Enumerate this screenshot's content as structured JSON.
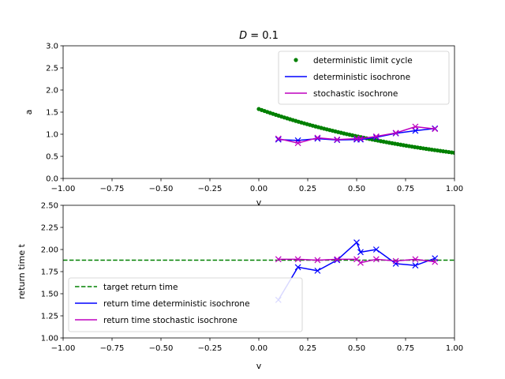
{
  "chart_data": [
    {
      "type": "scatter",
      "title": "D = 0.1",
      "title_parts": {
        "symbol": "D",
        "rest": " = 0.1"
      },
      "xlabel": "v",
      "ylabel": "a",
      "xlim": [
        -1.0,
        1.0
      ],
      "ylim": [
        0.0,
        3.0
      ],
      "x_ticks": [
        "−1.00",
        "−0.75",
        "−0.50",
        "−0.25",
        "0.00",
        "0.25",
        "0.50",
        "0.75",
        "1.00"
      ],
      "y_ticks": [
        "0.0",
        "0.5",
        "1.0",
        "1.5",
        "2.0",
        "2.5",
        "3.0"
      ],
      "grid": false,
      "legend_position": "upper-right",
      "series": [
        {
          "name": "deterministic limit cycle",
          "kind": "dots",
          "color": "#008000",
          "curve": {
            "x_start": 0.0,
            "x_end": 1.0,
            "y_start": 1.57,
            "y_end": 0.58,
            "count": 70
          }
        },
        {
          "name": "deterministic isochrone",
          "kind": "line-x",
          "color": "#0000ff",
          "x": [
            0.1,
            0.2,
            0.3,
            0.4,
            0.5,
            0.52,
            0.6,
            0.7,
            0.8,
            0.9
          ],
          "y": [
            0.88,
            0.86,
            0.9,
            0.87,
            0.88,
            0.88,
            0.93,
            1.02,
            1.08,
            1.13
          ]
        },
        {
          "name": "stochastic isochrone",
          "kind": "line-x",
          "color": "#bf00bf",
          "x": [
            0.1,
            0.2,
            0.3,
            0.4,
            0.5,
            0.52,
            0.6,
            0.7,
            0.8,
            0.9
          ],
          "y": [
            0.9,
            0.8,
            0.92,
            0.88,
            0.9,
            0.9,
            0.95,
            1.03,
            1.17,
            1.12
          ]
        }
      ]
    },
    {
      "type": "line",
      "xlabel": "v",
      "ylabel": "return time t",
      "xlim": [
        -1.0,
        1.0
      ],
      "ylim": [
        1.0,
        2.5
      ],
      "x_ticks": [
        "−1.00",
        "−0.75",
        "−0.50",
        "−0.25",
        "0.00",
        "0.25",
        "0.50",
        "0.75",
        "1.00"
      ],
      "y_ticks": [
        "1.00",
        "1.25",
        "1.50",
        "1.75",
        "2.00",
        "2.25",
        "2.50"
      ],
      "grid": false,
      "legend_position": "lower-left",
      "series": [
        {
          "name": "target return time",
          "kind": "hline",
          "color": "#008000",
          "y": 1.88
        },
        {
          "name": "return time deterministic isochrone",
          "kind": "line-x",
          "color": "#0000ff",
          "x": [
            0.1,
            0.2,
            0.3,
            0.4,
            0.5,
            0.52,
            0.6,
            0.7,
            0.8,
            0.9
          ],
          "y": [
            1.43,
            1.8,
            1.76,
            1.88,
            2.08,
            1.97,
            2.0,
            1.84,
            1.82,
            1.9
          ]
        },
        {
          "name": "return time stochastic isochrone",
          "kind": "line-x",
          "color": "#bf00bf",
          "x": [
            0.1,
            0.2,
            0.3,
            0.4,
            0.5,
            0.52,
            0.6,
            0.7,
            0.8,
            0.9
          ],
          "y": [
            1.89,
            1.89,
            1.88,
            1.89,
            1.89,
            1.85,
            1.89,
            1.87,
            1.89,
            1.86
          ]
        }
      ]
    }
  ]
}
